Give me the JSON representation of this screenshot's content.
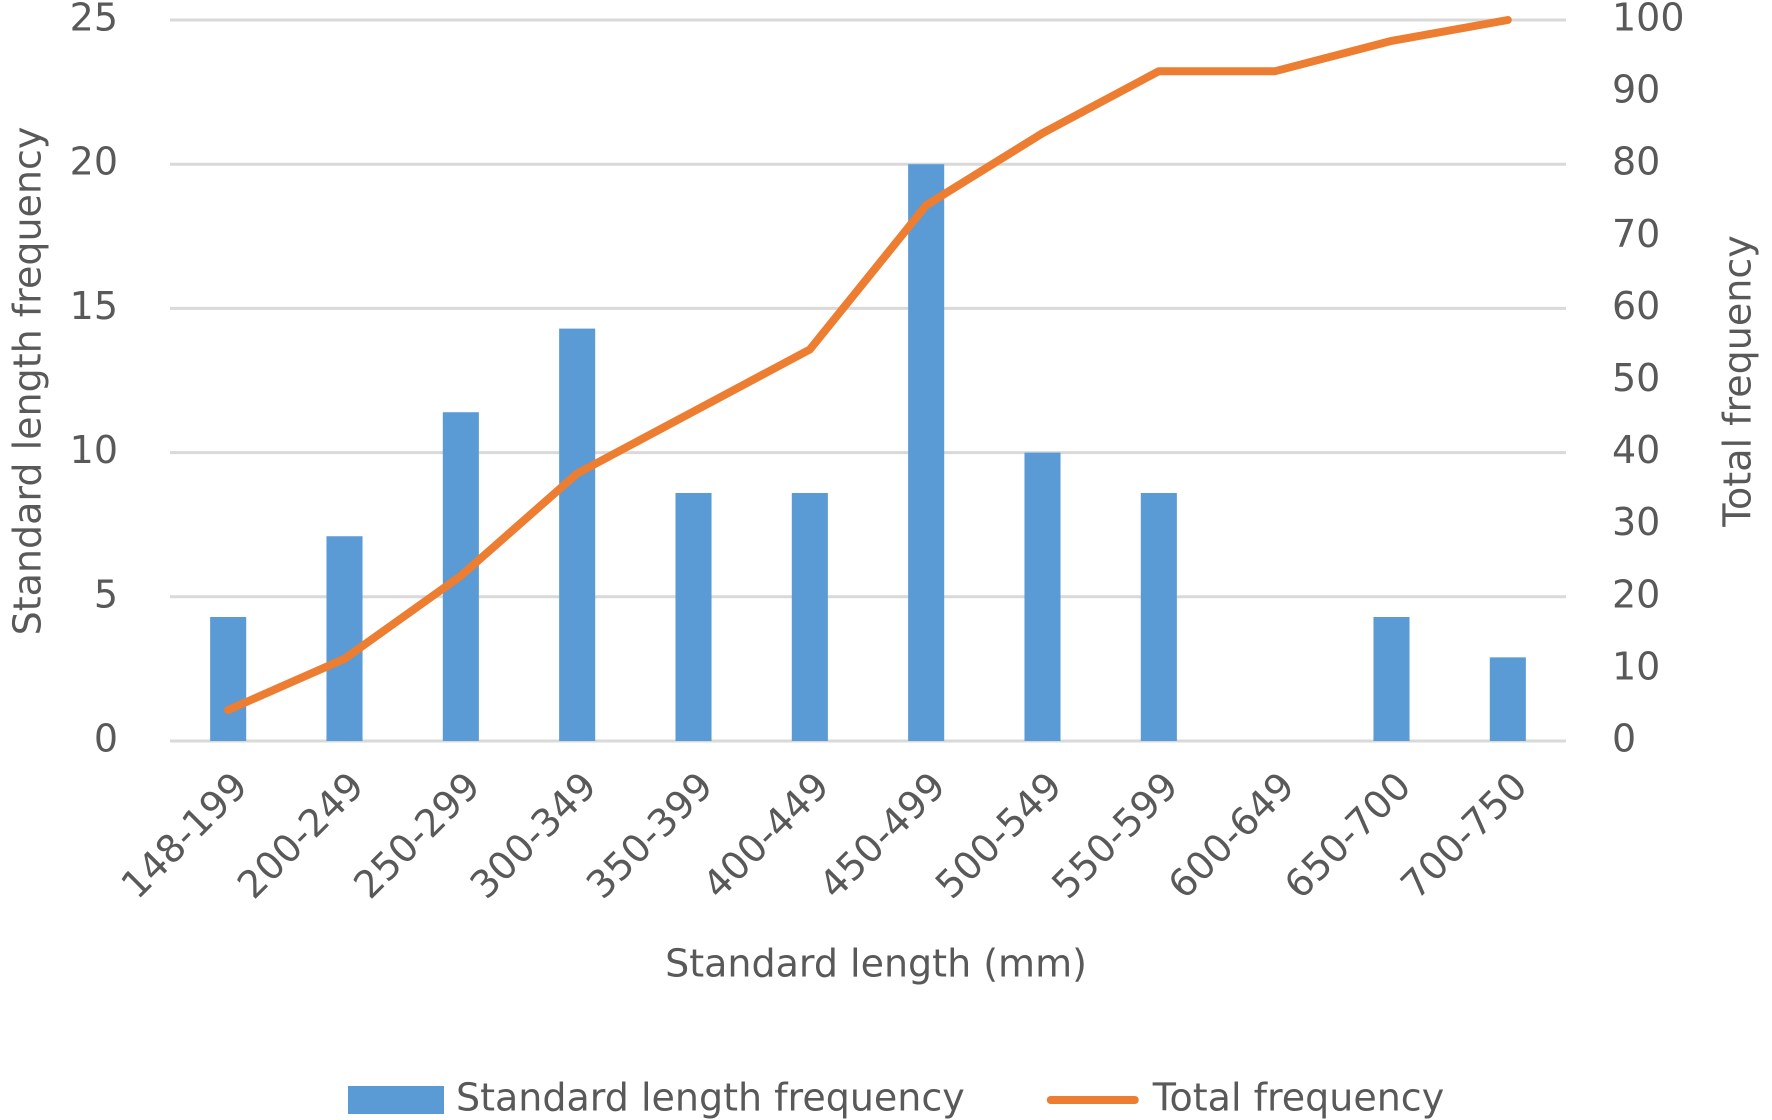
{
  "chart_data": {
    "type": "bar",
    "x_label": "Standard length (mm)",
    "y_label": "Standard length frequency",
    "y2_label": "Total frequency",
    "categories": [
      "148-199",
      "200-249",
      "250-299",
      "300-349",
      "350-399",
      "400-449",
      "450-499",
      "500-549",
      "550-599",
      "600-649",
      "650-700",
      "700-750"
    ],
    "series": [
      {
        "name": "Standard length frequency",
        "type": "bar",
        "color": "#5b9bd5",
        "values": [
          4.3,
          7.1,
          11.4,
          14.3,
          8.6,
          8.6,
          20,
          10,
          8.6,
          0,
          4.3,
          2.9
        ]
      },
      {
        "name": "Total frequency",
        "type": "line",
        "axis": "y2",
        "color": "#ed7d31",
        "values": [
          4.3,
          11.4,
          22.9,
          37.1,
          45.7,
          54.3,
          74.3,
          84.3,
          92.9,
          92.9,
          97.1,
          100
        ]
      }
    ],
    "ylim": [
      0,
      25
    ],
    "yticks": [
      0,
      5,
      10,
      15,
      20,
      25
    ],
    "y2lim": [
      0,
      100
    ],
    "y2ticks": [
      0,
      10,
      20,
      30,
      40,
      50,
      60,
      70,
      80,
      90,
      100
    ],
    "grid": true,
    "legend": "bottom"
  }
}
